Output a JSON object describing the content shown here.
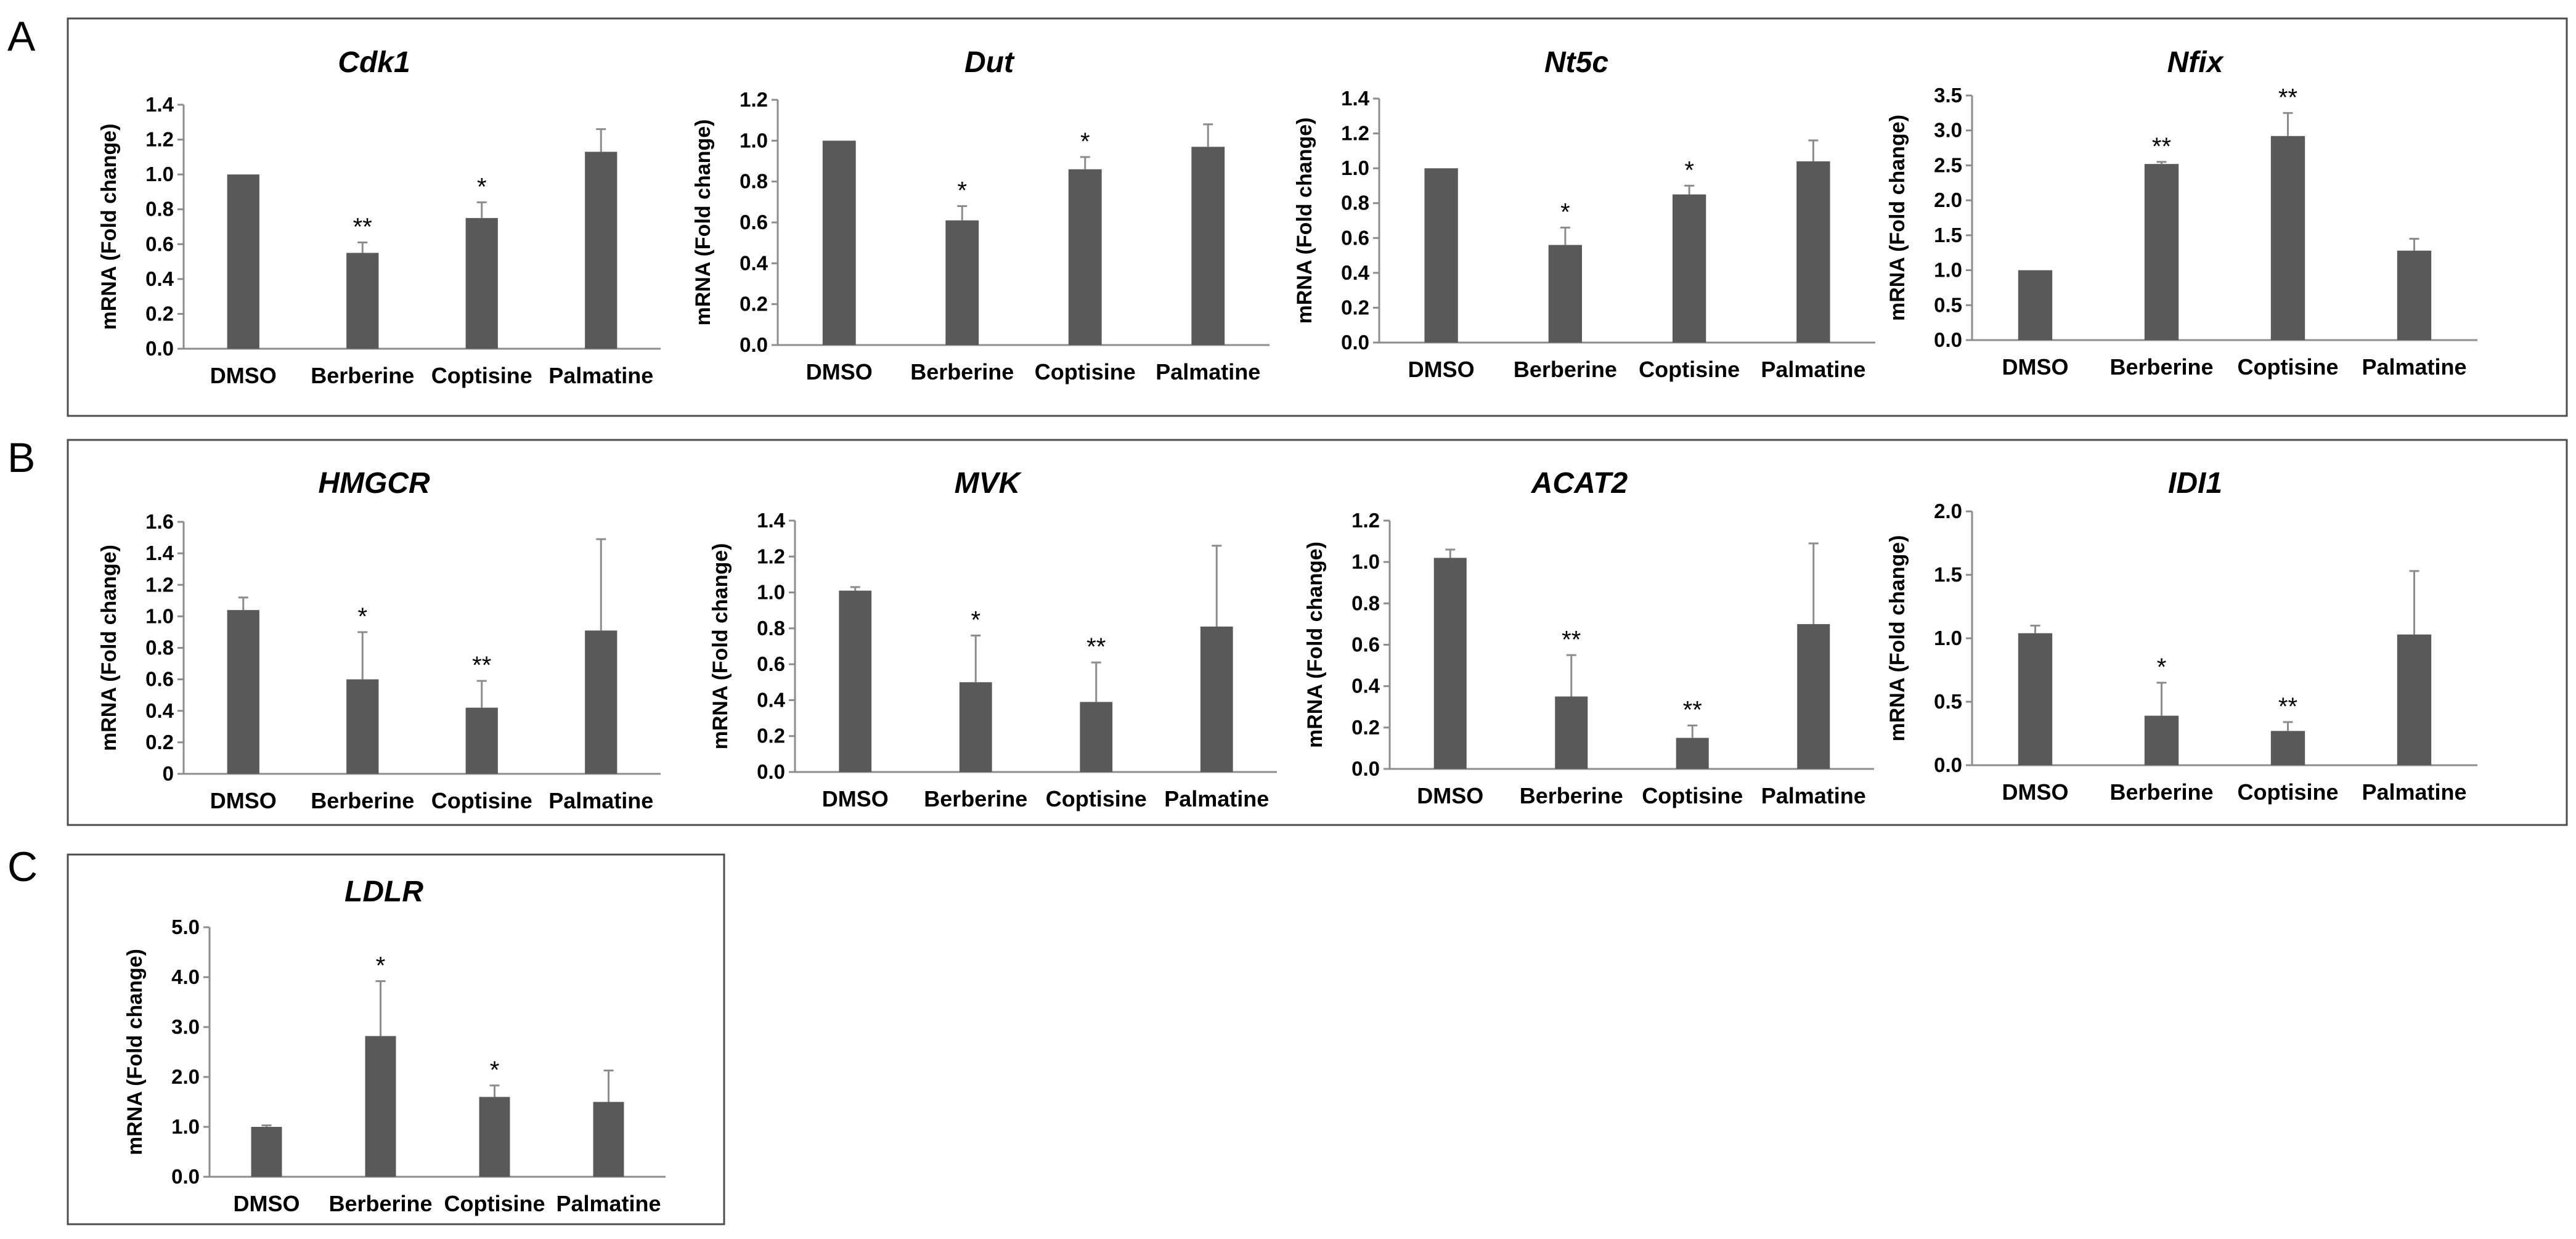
{
  "panels": [
    {
      "label": "A"
    },
    {
      "label": "B"
    },
    {
      "label": "C"
    }
  ],
  "colors": {
    "bar": "#595959",
    "axis": "#8c8c8c",
    "error": "#8c8c8c",
    "frame": "#4d4d4d",
    "text": "#000000"
  },
  "chart_data": [
    {
      "type": "bar",
      "panel": "A",
      "title": "Cdk1",
      "ylabel": "mRNA (Fold change)",
      "categories": [
        "DMSO",
        "Berberine",
        "Coptisine",
        "Palmatine"
      ],
      "values": [
        1.0,
        0.55,
        0.75,
        1.13
      ],
      "errors": [
        0.0,
        0.06,
        0.09,
        0.13
      ],
      "significance": [
        "",
        "**",
        "*",
        ""
      ],
      "ylim": [
        0,
        1.4
      ],
      "yticks": [
        "0.0",
        "0.2",
        "0.4",
        "0.6",
        "0.8",
        "1.0",
        "1.2",
        "1.4"
      ]
    },
    {
      "type": "bar",
      "panel": "A",
      "title": "Dut",
      "ylabel": "mRNA (Fold change)",
      "categories": [
        "DMSO",
        "Berberine",
        "Coptisine",
        "Palmatine"
      ],
      "values": [
        1.0,
        0.61,
        0.86,
        0.97
      ],
      "errors": [
        0.0,
        0.07,
        0.06,
        0.11
      ],
      "significance": [
        "",
        "*",
        "*",
        ""
      ],
      "ylim": [
        0,
        1.2
      ],
      "yticks": [
        "0.0",
        "0.2",
        "0.4",
        "0.6",
        "0.8",
        "1.0",
        "1.2"
      ]
    },
    {
      "type": "bar",
      "panel": "A",
      "title": "Nt5c",
      "ylabel": "mRNA (Fold change)",
      "categories": [
        "DMSO",
        "Berberine",
        "Coptisine",
        "Palmatine"
      ],
      "values": [
        1.0,
        0.56,
        0.85,
        1.04
      ],
      "errors": [
        0.0,
        0.1,
        0.05,
        0.12
      ],
      "significance": [
        "",
        "*",
        "*",
        ""
      ],
      "ylim": [
        0,
        1.4
      ],
      "yticks": [
        "0.0",
        "0.2",
        "0.4",
        "0.6",
        "0.8",
        "1.0",
        "1.2",
        "1.4"
      ]
    },
    {
      "type": "bar",
      "panel": "A",
      "title": "Nfix",
      "ylabel": "mRNA (Fold change)",
      "categories": [
        "DMSO",
        "Berberine",
        "Coptisine",
        "Palmatine"
      ],
      "values": [
        1.0,
        2.52,
        2.92,
        1.28
      ],
      "errors": [
        0.0,
        0.03,
        0.33,
        0.17
      ],
      "significance": [
        "",
        "**",
        "**",
        ""
      ],
      "ylim": [
        0,
        3.5
      ],
      "yticks": [
        "0.0",
        "0.5",
        "1.0",
        "1.5",
        "2.0",
        "2.5",
        "3.0",
        "3.5"
      ]
    },
    {
      "type": "bar",
      "panel": "B",
      "title": "HMGCR",
      "ylabel": "mRNA (Fold change)",
      "categories": [
        "DMSO",
        "Berberine",
        "Coptisine",
        "Palmatine"
      ],
      "values": [
        1.04,
        0.6,
        0.42,
        0.91
      ],
      "errors": [
        0.08,
        0.3,
        0.17,
        0.58
      ],
      "significance": [
        "",
        "*",
        "**",
        ""
      ],
      "ylim": [
        0,
        1.6
      ],
      "yticks": [
        "0",
        "0.2",
        "0.4",
        "0.6",
        "0.8",
        "1.0",
        "1.2",
        "1.4",
        "1.6"
      ]
    },
    {
      "type": "bar",
      "panel": "B",
      "title": "MVK",
      "ylabel": "mRNA (Fold change)",
      "categories": [
        "DMSO",
        "Berberine",
        "Coptisine",
        "Palmatine"
      ],
      "values": [
        1.01,
        0.5,
        0.39,
        0.81
      ],
      "errors": [
        0.02,
        0.26,
        0.22,
        0.45
      ],
      "significance": [
        "",
        "*",
        "**",
        ""
      ],
      "ylim": [
        0,
        1.4
      ],
      "yticks": [
        "0.0",
        "0.2",
        "0.4",
        "0.6",
        "0.8",
        "1.0",
        "1.2",
        "1.4"
      ]
    },
    {
      "type": "bar",
      "panel": "B",
      "title": "ACAT2",
      "ylabel": "mRNA (Fold change)",
      "categories": [
        "DMSO",
        "Berberine",
        "Coptisine",
        "Palmatine"
      ],
      "values": [
        1.02,
        0.35,
        0.15,
        0.7
      ],
      "errors": [
        0.04,
        0.2,
        0.06,
        0.39
      ],
      "significance": [
        "",
        "**",
        "**",
        ""
      ],
      "ylim": [
        0,
        1.2
      ],
      "yticks": [
        "0.0",
        "0.2",
        "0.4",
        "0.6",
        "0.8",
        "1.0",
        "1.2"
      ]
    },
    {
      "type": "bar",
      "panel": "B",
      "title": "IDI1",
      "ylabel": "mRNA (Fold change)",
      "categories": [
        "DMSO",
        "Berberine",
        "Coptisine",
        "Palmatine"
      ],
      "values": [
        1.04,
        0.39,
        0.27,
        1.03
      ],
      "errors": [
        0.06,
        0.26,
        0.07,
        0.5
      ],
      "significance": [
        "",
        "*",
        "**",
        ""
      ],
      "ylim": [
        0,
        2.0
      ],
      "yticks": [
        "0.0",
        "0.5",
        "1.0",
        "1.5",
        "2.0"
      ]
    },
    {
      "type": "bar",
      "panel": "C",
      "title": "LDLR",
      "ylabel": "mRNA (Fold change)",
      "categories": [
        "DMSO",
        "Berberine",
        "Coptisine",
        "Palmatine"
      ],
      "values": [
        1.0,
        2.82,
        1.6,
        1.5
      ],
      "errors": [
        0.03,
        1.1,
        0.23,
        0.63
      ],
      "significance": [
        "",
        "*",
        "*",
        ""
      ],
      "ylim": [
        0,
        5.0
      ],
      "yticks": [
        "0.0",
        "1.0",
        "2.0",
        "3.0",
        "4.0",
        "5.0"
      ]
    }
  ]
}
